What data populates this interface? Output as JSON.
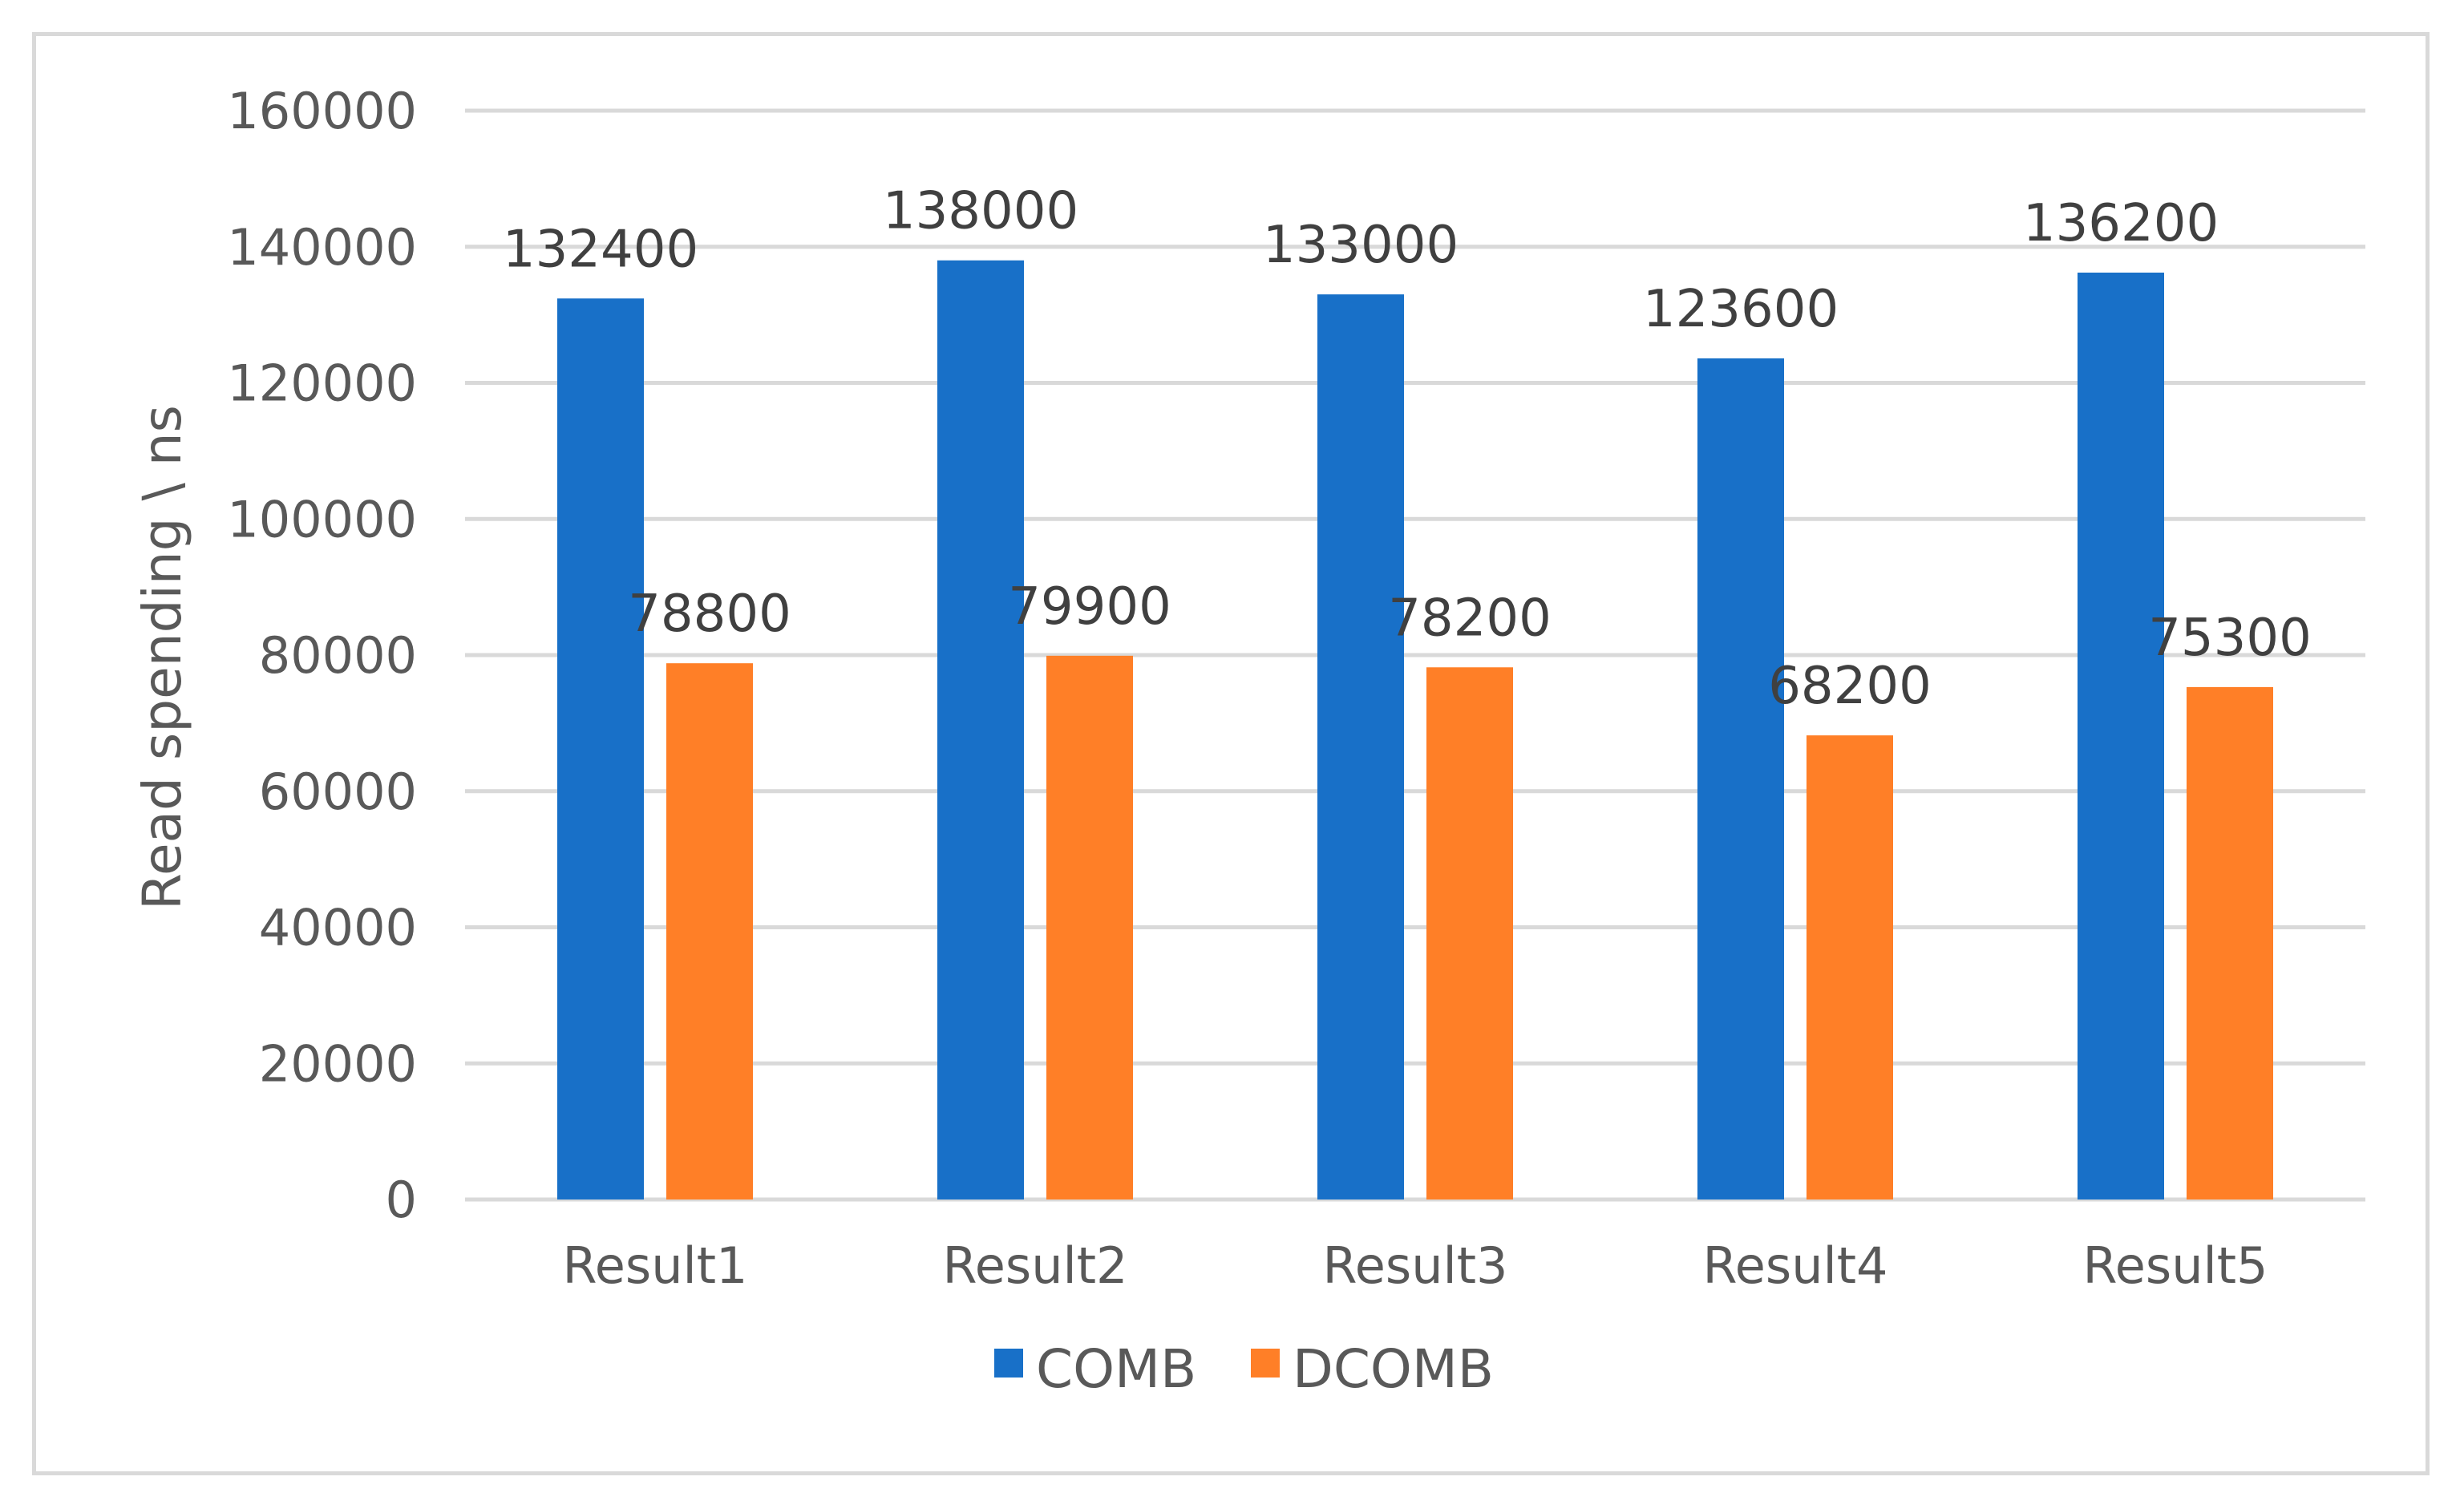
{
  "chart_data": {
    "type": "bar",
    "title": "",
    "xlabel": "",
    "ylabel": "Read spending \\ ns",
    "categories": [
      "Result1",
      "Result2",
      "Result3",
      "Result4",
      "Result5"
    ],
    "series": [
      {
        "name": "COMB",
        "values": [
          132400,
          138000,
          133000,
          123600,
          136200
        ],
        "color": "#1870c8"
      },
      {
        "name": "DCOMB",
        "values": [
          78800,
          79900,
          78200,
          68200,
          75300
        ],
        "color": "#ff7f27"
      }
    ],
    "yticks": [
      0,
      20000,
      40000,
      60000,
      80000,
      100000,
      120000,
      140000,
      160000
    ],
    "ylim": [
      0,
      160000
    ],
    "grid": true,
    "legend_position": "bottom-center",
    "data_labels": true
  }
}
